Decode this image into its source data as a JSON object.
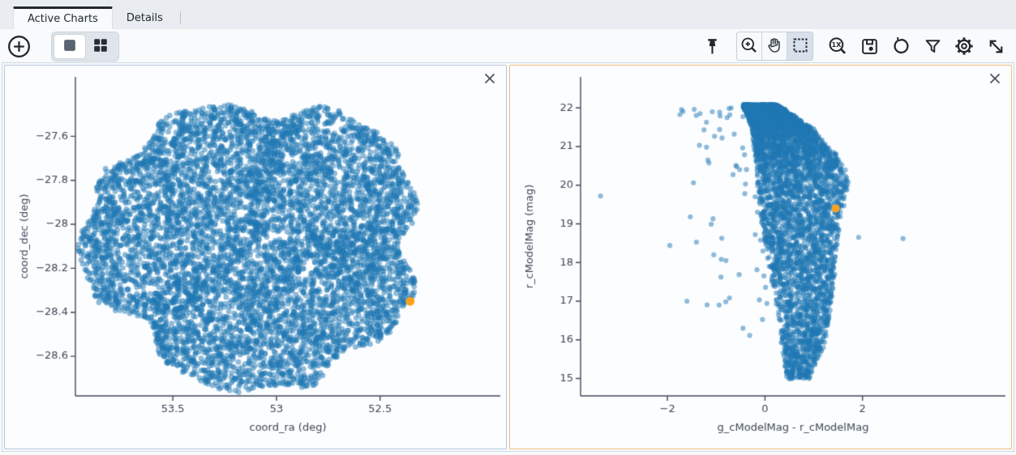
{
  "tabs": [
    {
      "label": "Active Charts",
      "active": true
    },
    {
      "label": "Details",
      "active": false
    }
  ],
  "toolbar": {
    "left_icons": [
      "add-chart",
      "layout-single",
      "layout-grid"
    ],
    "active_layout": "layout-single",
    "right_icons": [
      "pin",
      "zoom-in",
      "pan",
      "box-select",
      "zoom-1x",
      "save",
      "restore",
      "filter",
      "settings",
      "expand"
    ],
    "active_tool": "box-select"
  },
  "panels": [
    {
      "name": "sky-coverage-chart",
      "selected": false
    },
    {
      "name": "color-magnitude-chart",
      "selected": true
    }
  ],
  "colors": {
    "point_blue": "#1f77b4",
    "selected_orange": "#faa21e",
    "axis": "#3f4a57",
    "tick_text": "#3d4754",
    "panel_border": "#b5c7da",
    "panel_border_selected": "#efc183"
  },
  "chart_data": [
    {
      "type": "scatter",
      "title": "",
      "xlabel": "coord_ra (deg)",
      "ylabel": "coord_dec (deg)",
      "x_range": [
        53.97,
        51.92
      ],
      "y_range": [
        -28.78,
        -27.33
      ],
      "x_ticks": [
        {
          "v": 53.5,
          "label": "53.5"
        },
        {
          "v": 53.0,
          "label": "53"
        },
        {
          "v": 52.5,
          "label": "52.5"
        }
      ],
      "y_ticks": [
        {
          "v": -27.6,
          "label": "−27.6"
        },
        {
          "v": -27.8,
          "label": "−27.8"
        },
        {
          "v": -28.0,
          "label": "−28"
        },
        {
          "v": -28.2,
          "label": "−28.2"
        },
        {
          "v": -28.4,
          "label": "−28.4"
        },
        {
          "v": -28.6,
          "label": "−28.6"
        }
      ],
      "margins": {
        "l": 87,
        "r": 7,
        "t": 14,
        "b": 65
      },
      "marker": {
        "color": "#1f77b4",
        "opacity": 0.5,
        "radius": 3.4
      },
      "layers": [
        {
          "kind": "disk",
          "n": 7000,
          "seed": 12345,
          "center": [
            53.105,
            -28.085
          ],
          "rx": 0.8,
          "ry": 0.645,
          "edge_noise": [
            [
              3,
              0.045,
              0.7
            ],
            [
              5,
              0.05,
              2.2
            ],
            [
              8,
              0.035,
              4.1
            ],
            [
              13,
              0.03,
              1.3
            ]
          ]
        }
      ],
      "selected": {
        "x": 52.355,
        "y": -28.35,
        "radius": 5.5,
        "color": "#faa21e"
      }
    },
    {
      "type": "scatter",
      "title": "",
      "xlabel": "g_cModelMag - r_cModelMag",
      "ylabel": "r_cModelMag (mag)",
      "x_range": [
        -3.78,
        4.93
      ],
      "y_range": [
        14.55,
        22.8
      ],
      "x_ticks": [
        {
          "v": -2,
          "label": "−2"
        },
        {
          "v": 0,
          "label": "0"
        },
        {
          "v": 2,
          "label": "2"
        }
      ],
      "y_ticks": [
        {
          "v": 22,
          "label": "22"
        },
        {
          "v": 21,
          "label": "21"
        },
        {
          "v": 20,
          "label": "20"
        },
        {
          "v": 19,
          "label": "19"
        },
        {
          "v": 18,
          "label": "18"
        },
        {
          "v": 17,
          "label": "17"
        },
        {
          "v": 16,
          "label": "16"
        },
        {
          "v": 15,
          "label": "15"
        }
      ],
      "margins": {
        "l": 87,
        "r": 7,
        "t": 14,
        "b": 65
      },
      "marker": {
        "color": "#1f77b4",
        "opacity": 0.5,
        "radius": 3.1
      },
      "layers": [
        {
          "kind": "band",
          "n": 5200,
          "seed": 777,
          "mag_top": 22.05,
          "mag_bottom": 15.0,
          "mag_exponent": 2.4,
          "left_edge": [
            [
              22.05,
              -0.45
            ],
            [
              21.5,
              -0.27
            ],
            [
              20.8,
              -0.22
            ],
            [
              20.1,
              -0.17
            ],
            [
              19.4,
              -0.1
            ],
            [
              18.7,
              -0.05
            ],
            [
              18.0,
              0.07
            ],
            [
              17.3,
              0.17
            ],
            [
              16.6,
              0.28
            ],
            [
              15.9,
              0.33
            ],
            [
              15.0,
              0.45
            ]
          ],
          "right_edge": [
            [
              22.05,
              0.25
            ],
            [
              21.5,
              0.95
            ],
            [
              20.8,
              1.45
            ],
            [
              20.2,
              1.73
            ],
            [
              19.4,
              1.62
            ],
            [
              18.7,
              1.5
            ],
            [
              18.0,
              1.45
            ],
            [
              17.3,
              1.4
            ],
            [
              16.6,
              1.33
            ],
            [
              15.9,
              1.23
            ],
            [
              15.0,
              0.9
            ]
          ]
        },
        {
          "kind": "sprinkle",
          "n": 48,
          "seed": 31,
          "edge": [
            [
              22.05,
              -0.45
            ],
            [
              21.5,
              -0.27
            ],
            [
              20.8,
              -0.22
            ],
            [
              20.1,
              -0.17
            ],
            [
              19.4,
              -0.1
            ],
            [
              18.7,
              -0.05
            ],
            [
              18.0,
              0.07
            ],
            [
              17.3,
              0.17
            ],
            [
              16.6,
              0.28
            ],
            [
              15.9,
              0.33
            ],
            [
              15.0,
              0.45
            ]
          ],
          "mag_min": 15.6,
          "mag_max": 22.0,
          "mag_bias": 1.9,
          "min_offset": 0.06,
          "max_offset": 1.5,
          "offset_bias": 2.2
        },
        {
          "kind": "points",
          "points": [
            [
              -3.37,
              19.72
            ],
            [
              -1.95,
              18.44
            ],
            [
              -1.33,
              21.85
            ],
            [
              -1.08,
              21.9
            ],
            [
              -0.92,
              21.79
            ],
            [
              -0.72,
              21.82
            ],
            [
              -1.25,
              21.43
            ],
            [
              -0.88,
              21.22
            ],
            [
              -0.63,
              21.32
            ],
            [
              -1.17,
              20.65
            ],
            [
              -0.58,
              20.48
            ],
            [
              -1.05,
              18.2
            ],
            [
              -0.8,
              18.05
            ],
            [
              -0.94,
              16.9
            ],
            [
              -1.6,
              17.0
            ],
            [
              -0.45,
              16.3
            ],
            [
              2.83,
              18.62
            ],
            [
              1.92,
              18.65
            ],
            [
              0.85,
              15.05
            ],
            [
              0.62,
              15.55
            ],
            [
              1.02,
              15.5
            ]
          ]
        }
      ],
      "selected": {
        "x": 1.45,
        "y": 19.4,
        "radius": 5,
        "color": "#faa21e"
      }
    }
  ]
}
